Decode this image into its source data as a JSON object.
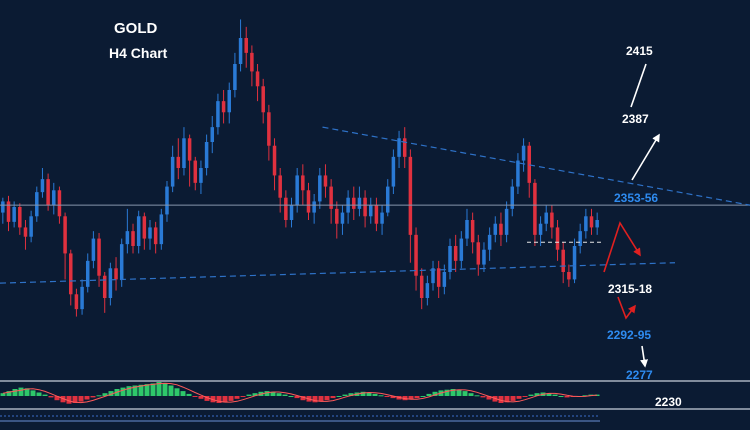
{
  "chart_data": {
    "type": "candlestick",
    "title": "GOLD",
    "subtitle": "H4 Chart",
    "price_range": [
      2230,
      2440
    ],
    "colors": {
      "background": "#0b1b33",
      "up_candle": "#2a7ad6",
      "down_candle": "#e0313f",
      "trendline": "#2e72c8",
      "level_label_blue": "#2e8bf0",
      "level_label_white": "#ffffff",
      "arrow_white": "#ffffff",
      "arrow_red": "#e02020",
      "histogram_up": "#2ec86a",
      "histogram_down": "#e0313f",
      "panel_divider": "#c8d0dc"
    },
    "candles": [
      [
        2332,
        2338,
        2326,
        2340
      ],
      [
        2338,
        2327,
        2322,
        2341
      ],
      [
        2327,
        2335,
        2324,
        2338
      ],
      [
        2335,
        2324,
        2320,
        2337
      ],
      [
        2324,
        2319,
        2312,
        2328
      ],
      [
        2319,
        2330,
        2316,
        2333
      ],
      [
        2330,
        2343,
        2327,
        2346
      ],
      [
        2343,
        2350,
        2340,
        2356
      ],
      [
        2350,
        2336,
        2333,
        2353
      ],
      [
        2336,
        2344,
        2331,
        2348
      ],
      [
        2344,
        2330,
        2326,
        2346
      ],
      [
        2330,
        2310,
        2296,
        2332
      ],
      [
        2310,
        2288,
        2282,
        2312
      ],
      [
        2288,
        2280,
        2276,
        2291
      ],
      [
        2280,
        2292,
        2277,
        2296
      ],
      [
        2292,
        2306,
        2289,
        2310
      ],
      [
        2306,
        2318,
        2302,
        2322
      ],
      [
        2318,
        2298,
        2292,
        2321
      ],
      [
        2298,
        2286,
        2278,
        2300
      ],
      [
        2286,
        2302,
        2282,
        2305
      ],
      [
        2302,
        2296,
        2290,
        2308
      ],
      [
        2296,
        2315,
        2292,
        2318
      ],
      [
        2315,
        2322,
        2310,
        2334
      ],
      [
        2322,
        2314,
        2310,
        2326
      ],
      [
        2314,
        2330,
        2310,
        2333
      ],
      [
        2330,
        2318,
        2312,
        2332
      ],
      [
        2318,
        2324,
        2312,
        2328
      ],
      [
        2324,
        2315,
        2310,
        2327
      ],
      [
        2315,
        2331,
        2312,
        2334
      ],
      [
        2331,
        2346,
        2327,
        2349
      ],
      [
        2346,
        2362,
        2343,
        2368
      ],
      [
        2362,
        2356,
        2350,
        2372
      ],
      [
        2356,
        2372,
        2352,
        2378
      ],
      [
        2372,
        2360,
        2346,
        2374
      ],
      [
        2360,
        2348,
        2344,
        2362
      ],
      [
        2348,
        2356,
        2342,
        2360
      ],
      [
        2356,
        2370,
        2352,
        2374
      ],
      [
        2370,
        2378,
        2364,
        2384
      ],
      [
        2378,
        2392,
        2374,
        2396
      ],
      [
        2392,
        2386,
        2380,
        2398
      ],
      [
        2386,
        2398,
        2380,
        2402
      ],
      [
        2398,
        2412,
        2394,
        2418
      ],
      [
        2412,
        2426,
        2408,
        2436
      ],
      [
        2426,
        2418,
        2410,
        2432
      ],
      [
        2418,
        2408,
        2400,
        2422
      ],
      [
        2408,
        2400,
        2392,
        2412
      ],
      [
        2400,
        2386,
        2380,
        2404
      ],
      [
        2386,
        2368,
        2360,
        2390
      ],
      [
        2368,
        2352,
        2344,
        2372
      ],
      [
        2352,
        2340,
        2332,
        2356
      ],
      [
        2340,
        2328,
        2324,
        2344
      ],
      [
        2328,
        2336,
        2324,
        2340
      ],
      [
        2336,
        2352,
        2332,
        2356
      ],
      [
        2352,
        2344,
        2336,
        2358
      ],
      [
        2344,
        2332,
        2328,
        2348
      ],
      [
        2332,
        2338,
        2326,
        2342
      ],
      [
        2338,
        2352,
        2334,
        2356
      ],
      [
        2352,
        2346,
        2340,
        2358
      ],
      [
        2346,
        2334,
        2326,
        2350
      ],
      [
        2334,
        2326,
        2318,
        2338
      ],
      [
        2326,
        2332,
        2320,
        2336
      ],
      [
        2332,
        2340,
        2326,
        2344
      ],
      [
        2340,
        2334,
        2328,
        2346
      ],
      [
        2334,
        2340,
        2330,
        2346
      ],
      [
        2340,
        2330,
        2324,
        2344
      ],
      [
        2330,
        2336,
        2326,
        2340
      ],
      [
        2336,
        2326,
        2322,
        2340
      ],
      [
        2326,
        2332,
        2320,
        2336
      ],
      [
        2332,
        2346,
        2330,
        2350
      ],
      [
        2346,
        2362,
        2342,
        2366
      ],
      [
        2362,
        2372,
        2356,
        2376
      ],
      [
        2372,
        2362,
        2356,
        2378
      ],
      [
        2362,
        2320,
        2305,
        2366
      ],
      [
        2320,
        2298,
        2290,
        2324
      ],
      [
        2298,
        2286,
        2280,
        2302
      ],
      [
        2286,
        2294,
        2282,
        2298
      ],
      [
        2294,
        2302,
        2290,
        2306
      ],
      [
        2302,
        2292,
        2286,
        2306
      ],
      [
        2292,
        2300,
        2288,
        2304
      ],
      [
        2300,
        2314,
        2296,
        2318
      ],
      [
        2314,
        2306,
        2300,
        2320
      ],
      [
        2306,
        2318,
        2302,
        2322
      ],
      [
        2318,
        2328,
        2314,
        2334
      ],
      [
        2328,
        2316,
        2310,
        2332
      ],
      [
        2316,
        2304,
        2298,
        2320
      ],
      [
        2304,
        2312,
        2300,
        2316
      ],
      [
        2312,
        2320,
        2306,
        2324
      ],
      [
        2320,
        2326,
        2316,
        2330
      ],
      [
        2326,
        2320,
        2314,
        2332
      ],
      [
        2320,
        2334,
        2316,
        2338
      ],
      [
        2334,
        2346,
        2330,
        2350
      ],
      [
        2346,
        2360,
        2342,
        2364
      ],
      [
        2360,
        2368,
        2354,
        2372
      ],
      [
        2368,
        2348,
        2340,
        2370
      ],
      [
        2348,
        2320,
        2314,
        2350
      ],
      [
        2320,
        2326,
        2314,
        2330
      ],
      [
        2326,
        2332,
        2322,
        2336
      ],
      [
        2332,
        2324,
        2318,
        2336
      ],
      [
        2324,
        2312,
        2306,
        2328
      ],
      [
        2312,
        2300,
        2294,
        2316
      ],
      [
        2300,
        2296,
        2292,
        2304
      ],
      [
        2296,
        2314,
        2294,
        2318
      ],
      [
        2314,
        2322,
        2310,
        2326
      ],
      [
        2322,
        2330,
        2318,
        2334
      ],
      [
        2330,
        2324,
        2320,
        2334
      ],
      [
        2324,
        2328,
        2320,
        2332
      ]
    ],
    "lines": {
      "resistance_trendline": [
        [
          0.43,
          2378
        ],
        [
          1.0,
          2336
        ]
      ],
      "support_trendline": [
        [
          0.0,
          2294
        ],
        [
          0.9,
          2305
        ]
      ],
      "horizontal_level": 2336,
      "dashed_level": 2316
    },
    "levels": [
      {
        "label": "2415",
        "value": 2415,
        "color": "level_label_white"
      },
      {
        "label": "2387",
        "value": 2387,
        "color": "level_label_white"
      },
      {
        "label": "2353-56",
        "value": 2354,
        "color": "level_label_blue"
      },
      {
        "label": "2315-18",
        "value": 2316,
        "color": "level_label_white"
      },
      {
        "label": "2292-95",
        "value": 2293,
        "color": "level_label_blue"
      },
      {
        "label": "2277",
        "value": 2277,
        "color": "level_label_blue"
      },
      {
        "label": "2230",
        "value": 2230,
        "color": "level_label_white"
      }
    ],
    "indicator": {
      "histogram": [
        0.2,
        0.35,
        0.5,
        0.6,
        0.55,
        0.4,
        0.25,
        0.1,
        -0.1,
        -0.3,
        -0.45,
        -0.55,
        -0.5,
        -0.4,
        -0.25,
        -0.1,
        0.05,
        0.2,
        0.35,
        0.5,
        0.6,
        0.7,
        0.75,
        0.8,
        0.85,
        0.9,
        1.0,
        0.9,
        0.75,
        0.55,
        0.35,
        0.15,
        -0.05,
        -0.2,
        -0.35,
        -0.45,
        -0.5,
        -0.45,
        -0.35,
        -0.2,
        -0.05,
        0.1,
        0.2,
        0.3,
        0.35,
        0.3,
        0.2,
        0.1,
        0.0,
        -0.15,
        -0.3,
        -0.4,
        -0.45,
        -0.4,
        -0.3,
        -0.15,
        0.0,
        0.1,
        0.2,
        0.25,
        0.3,
        0.25,
        0.15,
        0.05,
        -0.05,
        -0.15,
        -0.25,
        -0.3,
        -0.25,
        -0.15,
        0.0,
        0.15,
        0.3,
        0.4,
        0.45,
        0.5,
        0.45,
        0.35,
        0.2,
        0.05,
        -0.1,
        -0.25,
        -0.4,
        -0.5,
        -0.45,
        -0.35,
        -0.2,
        -0.05,
        0.1,
        0.2,
        0.25,
        0.2,
        0.1,
        0.0,
        -0.1,
        -0.05,
        0.0,
        0.05,
        0.1,
        0.1
      ]
    }
  }
}
